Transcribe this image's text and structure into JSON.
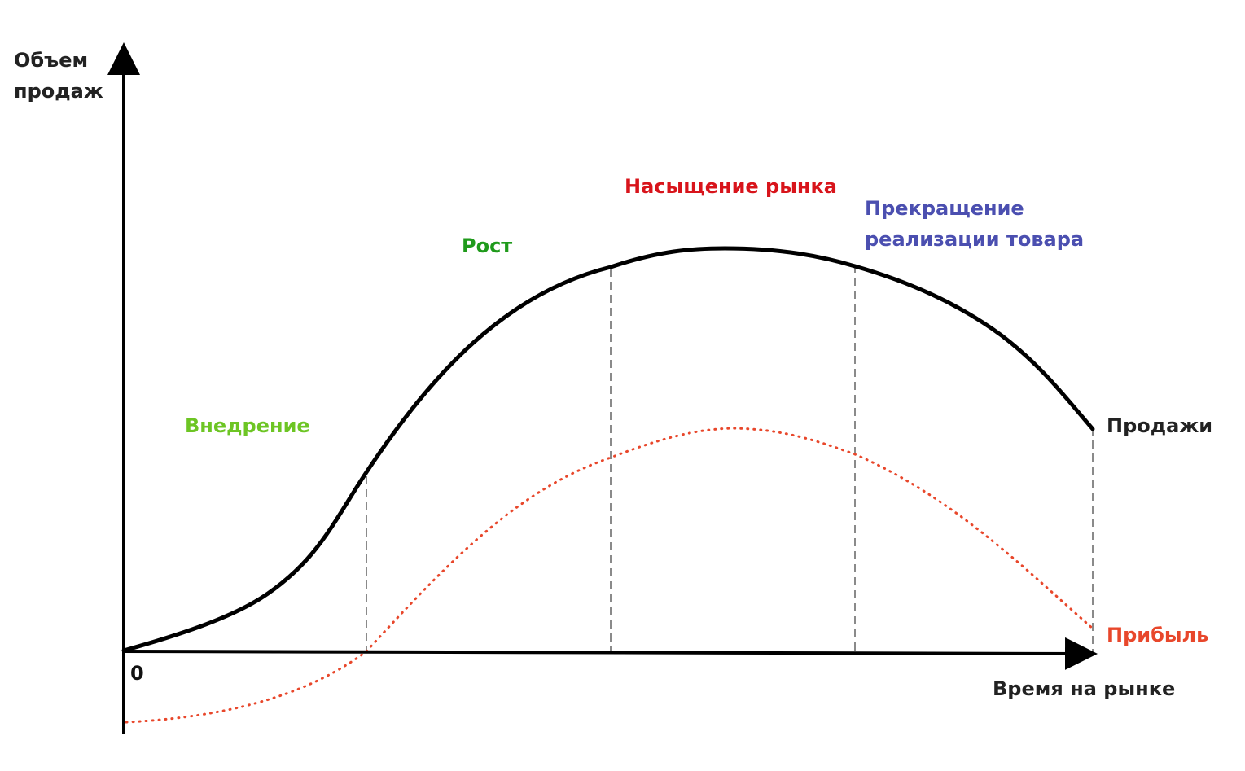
{
  "axes": {
    "y_label": [
      "Объем",
      "продаж"
    ],
    "x_label": "Время на рынке",
    "origin": "0"
  },
  "stages": [
    {
      "label": "Внедрение",
      "color": "#6dc524"
    },
    {
      "label": "Рост",
      "color": "#1f9a1b"
    },
    {
      "label": "Насыщение рынка",
      "color": "#d8141b"
    },
    {
      "label_lines": [
        "Прекращение",
        "реализации товара"
      ],
      "color": "#4b4fb0"
    }
  ],
  "curves": {
    "sales": {
      "label": "Продажи",
      "color": "#000000",
      "style": "solid"
    },
    "profit": {
      "label": "Прибыль",
      "color": "#e8472b",
      "style": "dotted"
    }
  },
  "boundary_line_color": "#8a8a8a"
}
